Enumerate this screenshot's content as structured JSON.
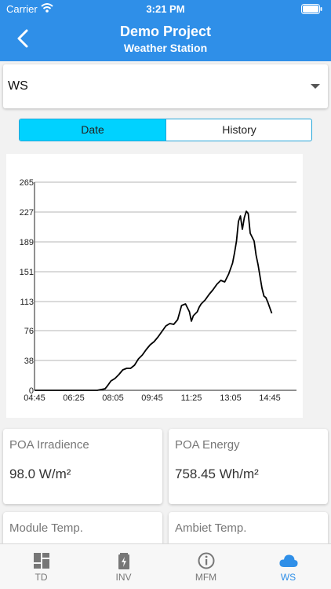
{
  "status_bar": {
    "carrier": "Carrier",
    "time": "3:21 PM"
  },
  "header": {
    "title": "Demo Project",
    "subtitle": "Weather Station"
  },
  "device_select": {
    "value": "WS"
  },
  "segment": {
    "tabs": [
      "Date",
      "History"
    ],
    "selected": "Date"
  },
  "chart_data": {
    "type": "line",
    "title": "",
    "xlabel": "",
    "ylabel": "",
    "ylim": [
      0,
      265
    ],
    "y_ticks": [
      "0",
      "38",
      "76",
      "113",
      "151",
      "189",
      "227",
      "265"
    ],
    "x_ticks": [
      "04:45",
      "06:25",
      "08:05",
      "09:45",
      "11:25",
      "13:05",
      "14:45"
    ],
    "grid": true,
    "series": [
      {
        "color": "#000000",
        "x": [
          "04:45",
          "05:05",
          "05:25",
          "05:45",
          "06:05",
          "06:25",
          "06:45",
          "07:05",
          "07:25",
          "07:45",
          "07:50",
          "08:00",
          "08:10",
          "08:20",
          "08:30",
          "08:40",
          "08:50",
          "09:00",
          "09:10",
          "09:20",
          "09:30",
          "09:40",
          "09:50",
          "10:00",
          "10:10",
          "10:20",
          "10:30",
          "10:40",
          "10:50",
          "11:00",
          "11:10",
          "11:20",
          "11:25",
          "11:30",
          "11:40",
          "11:45",
          "11:50",
          "12:00",
          "12:10",
          "12:20",
          "12:30",
          "12:40",
          "12:50",
          "13:00",
          "13:05",
          "13:10",
          "13:15",
          "13:20",
          "13:25",
          "13:30",
          "13:35",
          "13:40",
          "13:45",
          "13:50",
          "13:55",
          "14:00",
          "14:05",
          "14:10",
          "14:15",
          "14:20",
          "14:25",
          "14:30",
          "14:35",
          "14:40",
          "14:45",
          "14:50"
        ],
        "values": [
          0,
          0,
          0,
          0,
          0,
          0,
          0,
          0,
          0,
          2,
          5,
          12,
          15,
          20,
          26,
          28,
          28,
          32,
          40,
          45,
          52,
          58,
          62,
          68,
          75,
          82,
          85,
          84,
          90,
          108,
          110,
          100,
          88,
          95,
          100,
          106,
          110,
          115,
          122,
          128,
          135,
          140,
          138,
          148,
          155,
          162,
          175,
          190,
          215,
          222,
          205,
          220,
          228,
          225,
          200,
          195,
          190,
          172,
          160,
          145,
          130,
          120,
          118,
          112,
          105,
          98
        ]
      }
    ]
  },
  "cards": [
    {
      "label": "POA Irradience",
      "value": "98.0 W/m²"
    },
    {
      "label": "POA Energy",
      "value": "758.45 Wh/m²"
    },
    {
      "label": "Module Temp.",
      "value": ""
    },
    {
      "label": "Ambiet Temp.",
      "value": ""
    }
  ],
  "tabbar": {
    "items": [
      {
        "label": "TD",
        "icon": "dashboard-grid-icon"
      },
      {
        "label": "INV",
        "icon": "battery-charging-icon"
      },
      {
        "label": "MFM",
        "icon": "info-circle-icon"
      },
      {
        "label": "WS",
        "icon": "cloud-icon"
      }
    ],
    "active": "WS",
    "active_color": "#2f8fe8"
  },
  "colors": {
    "accent": "#2f8fe8",
    "segment_selected": "#00d2ff"
  }
}
